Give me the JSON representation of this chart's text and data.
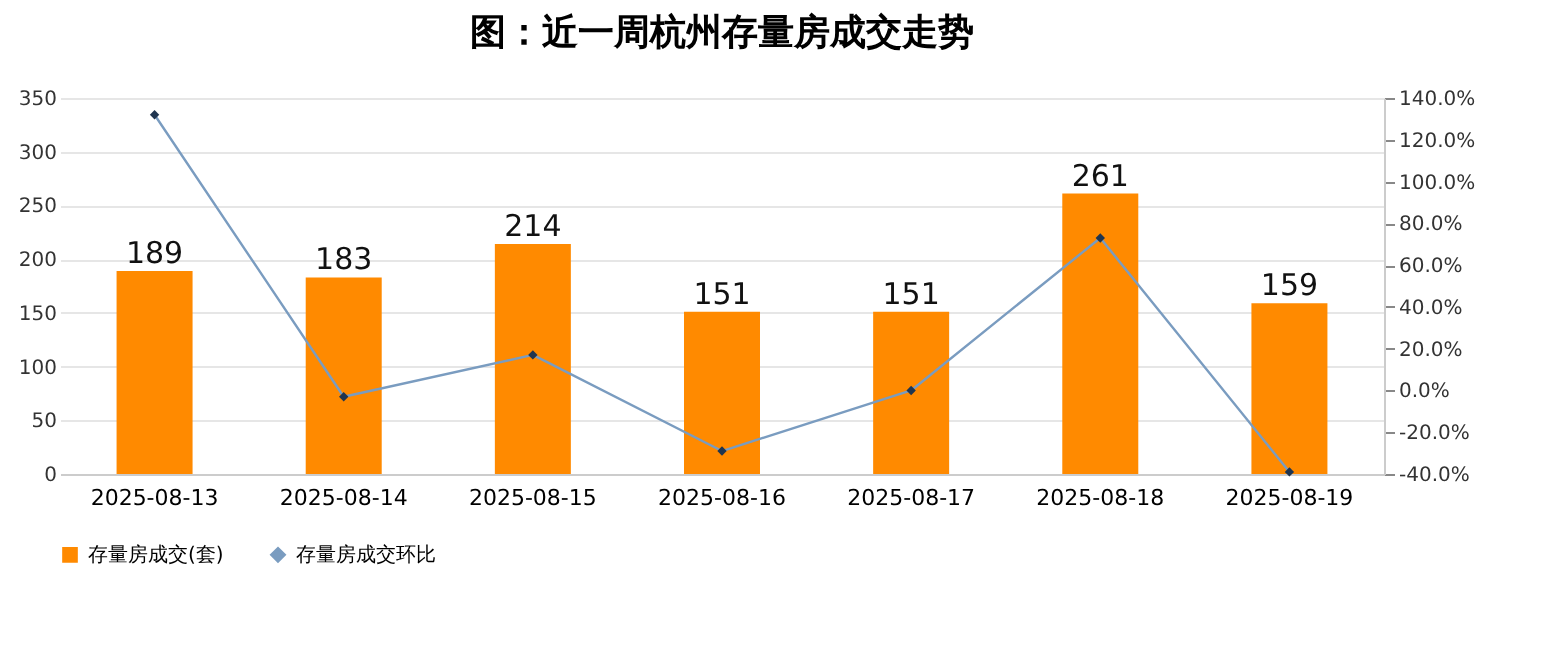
{
  "chart_data": {
    "type": "bar",
    "title": "图：近一周杭州存量房成交走势",
    "categories": [
      "2025-08-13",
      "2025-08-14",
      "2025-08-15",
      "2025-08-16",
      "2025-08-17",
      "2025-08-18",
      "2025-08-19"
    ],
    "series": [
      {
        "name": "存量房成交(套)",
        "color": "#ff8a00",
        "values": [
          189,
          183,
          214,
          151,
          151,
          261,
          159
        ],
        "value_labels": [
          "189",
          "183",
          "214",
          "151",
          "151",
          "261",
          "159"
        ]
      },
      {
        "name": "存量房成交环比",
        "type": "line",
        "axis": "y2",
        "color": "#7a9cc0",
        "marker": "diamond",
        "values": [
          132,
          -3,
          17,
          -29,
          0,
          73,
          -39
        ]
      }
    ],
    "ylim": [
      0,
      350
    ],
    "yticks": [
      0,
      50,
      100,
      150,
      200,
      250,
      300,
      350
    ],
    "y2lim": [
      -40,
      140
    ],
    "y2ticks": [
      {
        "value": -40,
        "label": "-40.0%"
      },
      {
        "value": -20,
        "label": "-20.0%"
      },
      {
        "value": 0,
        "label": "0.0%"
      },
      {
        "value": 20,
        "label": "20.0%"
      },
      {
        "value": 40,
        "label": "40.0%"
      },
      {
        "value": 60,
        "label": "60.0%"
      },
      {
        "value": 80,
        "label": "80.0%"
      },
      {
        "value": 100,
        "label": "100.0%"
      },
      {
        "value": 120,
        "label": "120.0%"
      },
      {
        "value": 140,
        "label": "140.0%"
      }
    ],
    "grid": "y",
    "legend": "bottom"
  }
}
